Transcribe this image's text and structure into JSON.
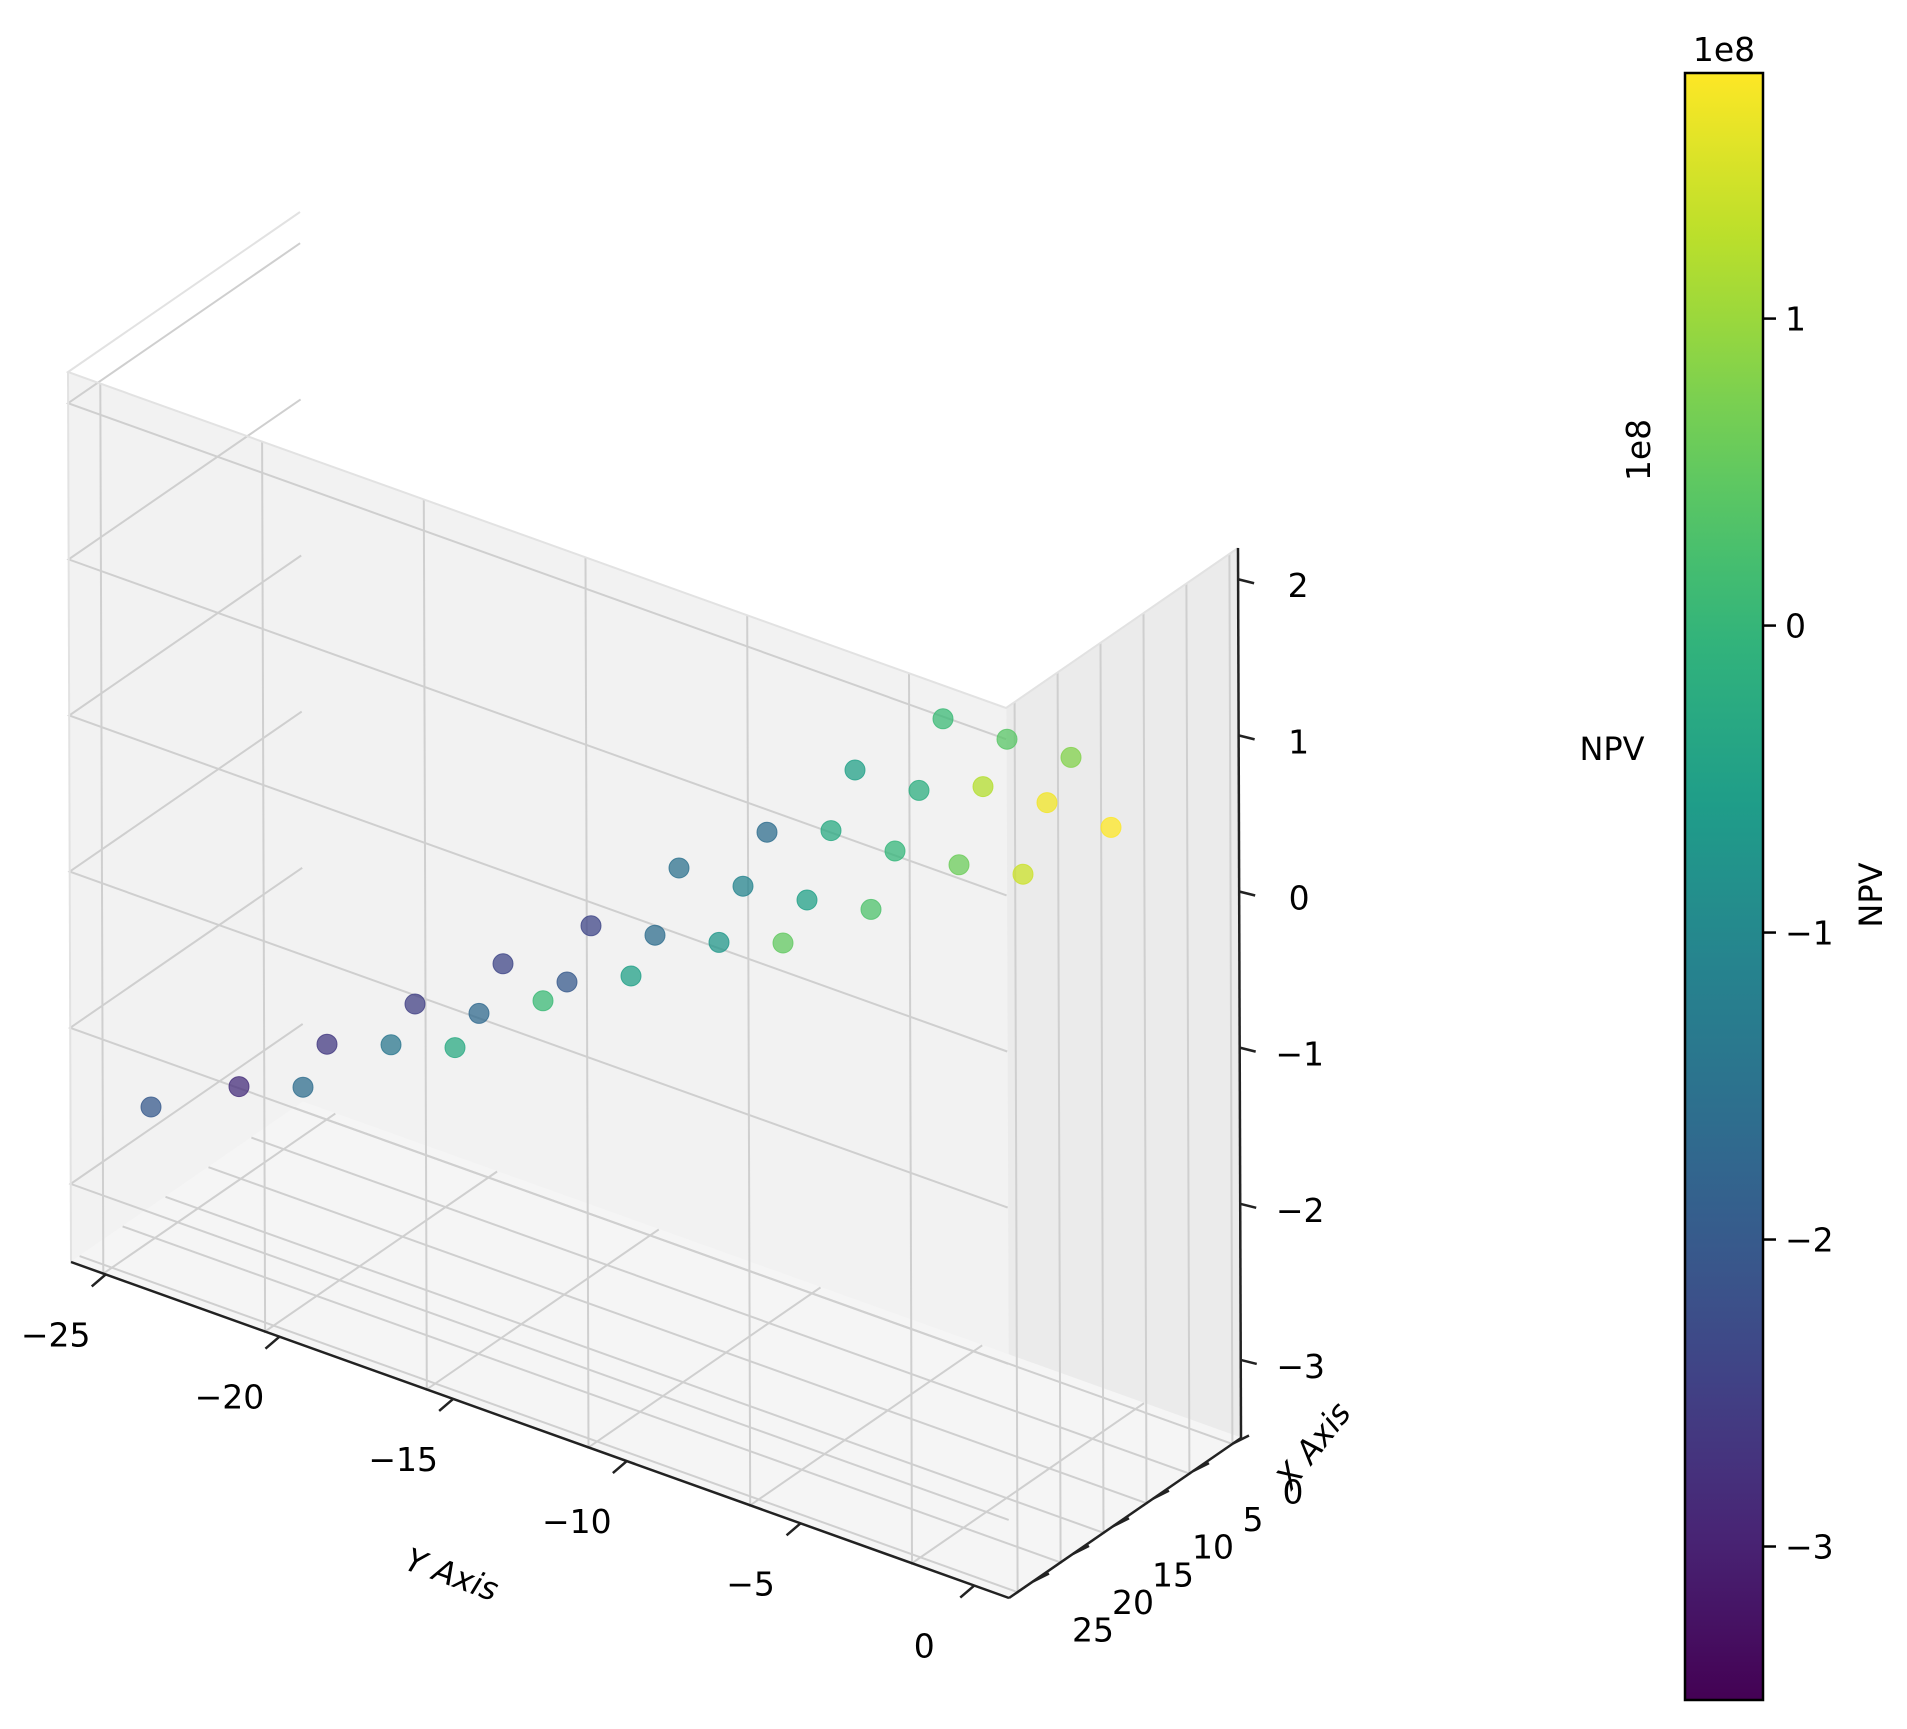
{
  "chart_data": {
    "type": "scatter",
    "projection": "3d",
    "xlabel": "Y Axis",
    "ylabel": "X Axis",
    "zlabel": "NPV",
    "z_offset_label": "1e8",
    "xlim": [
      -26,
      1
    ],
    "ylim": [
      -1,
      28
    ],
    "zlim": [
      -3.5,
      2.2
    ],
    "x_ticks": [
      "−25",
      "−20",
      "−15",
      "−10",
      "−5",
      "0"
    ],
    "y_ticks": [
      "0",
      "5",
      "10",
      "15",
      "20",
      "25"
    ],
    "z_ticks": [
      "−3",
      "−2",
      "−1",
      "0",
      "1",
      "2"
    ],
    "grid": true,
    "colormap": "viridis",
    "colorbar": {
      "label": "NPV",
      "offset_label": "1e8",
      "range": [
        -3.5,
        1.8
      ],
      "ticks": [
        "−3",
        "−2",
        "−1",
        "0",
        "1"
      ]
    },
    "points_npv_1e8": [
      {
        "row": 0,
        "col": 0,
        "npv": -2.0
      },
      {
        "row": 0,
        "col": 1,
        "npv": -1.6
      },
      {
        "row": 0,
        "col": 2,
        "npv": -0.3
      },
      {
        "row": 1,
        "col": 0,
        "npv": -2.8
      },
      {
        "row": 1,
        "col": 1,
        "npv": -1.4
      },
      {
        "row": 1,
        "col": 2,
        "npv": 0.1
      },
      {
        "row": 2,
        "col": 0,
        "npv": -2.6
      },
      {
        "row": 2,
        "col": 1,
        "npv": -1.7
      },
      {
        "row": 2,
        "col": 2,
        "npv": -0.5
      },
      {
        "row": 2,
        "col": 3,
        "npv": 0.5
      },
      {
        "row": 3,
        "col": 0,
        "npv": -2.5
      },
      {
        "row": 3,
        "col": 1,
        "npv": -2.0
      },
      {
        "row": 3,
        "col": 2,
        "npv": -0.7
      },
      {
        "row": 3,
        "col": 3,
        "npv": 0.3
      },
      {
        "row": 3,
        "col": 4,
        "npv": 1.4
      },
      {
        "row": 4,
        "col": 0,
        "npv": -2.4
      },
      {
        "row": 4,
        "col": 1,
        "npv": -1.6
      },
      {
        "row": 4,
        "col": 2,
        "npv": -0.5
      },
      {
        "row": 4,
        "col": 3,
        "npv": 0.6
      },
      {
        "row": 4,
        "col": 4,
        "npv": 1.8
      },
      {
        "row": 5,
        "col": 0,
        "npv": -2.4
      },
      {
        "row": 5,
        "col": 1,
        "npv": -1.1
      },
      {
        "row": 5,
        "col": 2,
        "npv": 0.0
      },
      {
        "row": 5,
        "col": 3,
        "npv": 1.7
      },
      {
        "row": 6,
        "col": 0,
        "npv": -1.5
      },
      {
        "row": 6,
        "col": 1,
        "npv": -0.3
      },
      {
        "row": 6,
        "col": 2,
        "npv": 1.2
      },
      {
        "row": 7,
        "col": 0,
        "npv": -1.6
      },
      {
        "row": 7,
        "col": 1,
        "npv": -0.2
      },
      {
        "row": 7,
        "col": 2,
        "npv": 0.8
      },
      {
        "row": 8,
        "col": 0,
        "npv": -0.5
      },
      {
        "row": 8,
        "col": 1,
        "npv": 0.4
      },
      {
        "row": 9,
        "col": 0,
        "npv": 0.1
      }
    ]
  }
}
